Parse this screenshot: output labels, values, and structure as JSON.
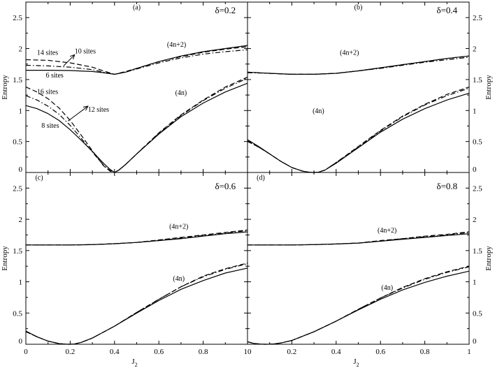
{
  "chart_data": [
    {
      "type": "line",
      "panel": "(a)",
      "annotation": "δ=0.2",
      "xlim": [
        0,
        1
      ],
      "ylim": [
        0,
        2.75
      ],
      "xticks": [
        "0",
        "0.2",
        "0.4",
        "0.6",
        "0.8",
        "1"
      ],
      "yticks": [
        "0",
        "0.5",
        "1",
        "1.5",
        "2",
        "2.5"
      ],
      "ylabel": "Entropy",
      "xlabel": "",
      "branch_labels": [
        "(4n+2)",
        "(4n)"
      ],
      "size_labels": [
        "14 sites",
        "10 sites",
        "6 sites",
        "16 sites",
        "12 sites",
        "8 sites"
      ],
      "series": [
        {
          "name": "6 sites",
          "dash": "solid",
          "x": [
            0,
            0.1,
            0.2,
            0.3,
            0.35,
            0.4,
            0.45,
            0.5,
            0.6,
            0.7,
            0.8,
            0.9,
            1.0
          ],
          "y": [
            1.65,
            1.65,
            1.645,
            1.63,
            1.61,
            1.585,
            1.62,
            1.68,
            1.79,
            1.88,
            1.95,
            2.0,
            2.05
          ]
        },
        {
          "name": "10 sites",
          "dash": "dashdot",
          "x": [
            0,
            0.1,
            0.2,
            0.3,
            0.35,
            0.4,
            0.45,
            0.5,
            0.6,
            0.7,
            0.8,
            0.9,
            1.0
          ],
          "y": [
            1.73,
            1.72,
            1.7,
            1.66,
            1.62,
            1.585,
            1.62,
            1.67,
            1.77,
            1.85,
            1.91,
            1.95,
            1.98
          ]
        },
        {
          "name": "14 sites",
          "dash": "dashed",
          "x": [
            0,
            0.1,
            0.2,
            0.3,
            0.35,
            0.4,
            0.45,
            0.5,
            0.6,
            0.7,
            0.8,
            0.9,
            1.0
          ],
          "y": [
            1.82,
            1.81,
            1.77,
            1.7,
            1.64,
            1.585,
            1.63,
            1.68,
            1.79,
            1.87,
            1.94,
            1.99,
            2.03
          ]
        },
        {
          "name": "8 sites",
          "dash": "solid",
          "x": [
            0,
            0.05,
            0.1,
            0.15,
            0.2,
            0.25,
            0.3,
            0.35,
            0.38,
            0.4,
            0.42,
            0.45,
            0.5,
            0.6,
            0.7,
            0.8,
            0.9,
            1.0
          ],
          "y": [
            1.08,
            1.03,
            0.95,
            0.84,
            0.69,
            0.52,
            0.34,
            0.15,
            0.05,
            0.0,
            0.04,
            0.13,
            0.3,
            0.62,
            0.9,
            1.12,
            1.3,
            1.44
          ]
        },
        {
          "name": "12 sites",
          "dash": "dashdot",
          "x": [
            0,
            0.05,
            0.1,
            0.15,
            0.2,
            0.25,
            0.3,
            0.35,
            0.38,
            0.4,
            0.42,
            0.45,
            0.5,
            0.6,
            0.7,
            0.8,
            0.9,
            1.0
          ],
          "y": [
            1.24,
            1.17,
            1.07,
            0.94,
            0.76,
            0.55,
            0.33,
            0.12,
            0.03,
            0.0,
            0.04,
            0.13,
            0.3,
            0.63,
            0.92,
            1.16,
            1.36,
            1.52
          ]
        },
        {
          "name": "16 sites",
          "dash": "dashed",
          "x": [
            0,
            0.05,
            0.1,
            0.15,
            0.2,
            0.25,
            0.3,
            0.35,
            0.38,
            0.4,
            0.42,
            0.45,
            0.5,
            0.6,
            0.7,
            0.8,
            0.9,
            1.0
          ],
          "y": [
            1.38,
            1.3,
            1.19,
            1.04,
            0.84,
            0.6,
            0.35,
            0.11,
            0.02,
            0.0,
            0.04,
            0.13,
            0.3,
            0.64,
            0.93,
            1.17,
            1.38,
            1.54
          ]
        }
      ]
    },
    {
      "type": "line",
      "panel": "(b)",
      "annotation": "δ=0.4",
      "xlim": [
        0,
        1
      ],
      "ylim": [
        0,
        2.75
      ],
      "xticks": [
        "0",
        "0.2",
        "0.4",
        "0.6",
        "0.8",
        "1"
      ],
      "yticks": [
        "0",
        "0.5",
        "1",
        "1.5",
        "2",
        "2.5"
      ],
      "ylabel": "",
      "xlabel": "",
      "branch_labels": [
        "(4n+2)",
        "(4n)"
      ],
      "series": [
        {
          "name": "",
          "dash": "solid",
          "x": [
            0,
            0.1,
            0.2,
            0.3,
            0.4,
            0.5,
            0.6,
            0.7,
            0.8,
            0.9,
            1.0
          ],
          "y": [
            1.62,
            1.6,
            1.585,
            1.585,
            1.6,
            1.64,
            1.69,
            1.74,
            1.79,
            1.84,
            1.88
          ]
        },
        {
          "name": "",
          "dash": "dashdot",
          "x": [
            0,
            0.1,
            0.2,
            0.3,
            0.4,
            0.5,
            0.6,
            0.7,
            0.8,
            0.9,
            1.0
          ],
          "y": [
            1.61,
            1.6,
            1.585,
            1.585,
            1.6,
            1.64,
            1.68,
            1.73,
            1.78,
            1.82,
            1.86
          ]
        },
        {
          "name": "",
          "dash": "dashed",
          "x": [
            0,
            0.1,
            0.2,
            0.3,
            0.4,
            0.5,
            0.6,
            0.7,
            0.8,
            0.9,
            1.0
          ],
          "y": [
            1.62,
            1.6,
            1.585,
            1.585,
            1.6,
            1.64,
            1.69,
            1.74,
            1.79,
            1.84,
            1.88
          ]
        },
        {
          "name": "",
          "dash": "solid",
          "x": [
            0,
            0.05,
            0.1,
            0.15,
            0.2,
            0.25,
            0.28,
            0.3,
            0.32,
            0.35,
            0.4,
            0.5,
            0.6,
            0.7,
            0.8,
            0.9,
            1.0
          ],
          "y": [
            0.53,
            0.42,
            0.3,
            0.18,
            0.08,
            0.02,
            0.003,
            0.0,
            0.005,
            0.04,
            0.15,
            0.4,
            0.65,
            0.86,
            1.03,
            1.17,
            1.28
          ]
        },
        {
          "name": "",
          "dash": "dashdot",
          "x": [
            0,
            0.05,
            0.1,
            0.15,
            0.2,
            0.25,
            0.28,
            0.3,
            0.32,
            0.35,
            0.4,
            0.5,
            0.6,
            0.7,
            0.8,
            0.9,
            1.0
          ],
          "y": [
            0.51,
            0.41,
            0.3,
            0.18,
            0.08,
            0.02,
            0.003,
            0.0,
            0.005,
            0.04,
            0.16,
            0.41,
            0.67,
            0.9,
            1.09,
            1.24,
            1.36
          ]
        },
        {
          "name": "",
          "dash": "dashed",
          "x": [
            0,
            0.05,
            0.1,
            0.15,
            0.2,
            0.25,
            0.28,
            0.3,
            0.32,
            0.35,
            0.4,
            0.5,
            0.6,
            0.7,
            0.8,
            0.9,
            1.0
          ],
          "y": [
            0.5,
            0.41,
            0.3,
            0.18,
            0.08,
            0.02,
            0.003,
            0.0,
            0.005,
            0.04,
            0.16,
            0.42,
            0.68,
            0.91,
            1.1,
            1.26,
            1.38
          ]
        }
      ]
    },
    {
      "type": "line",
      "panel": "(c)",
      "annotation": "δ=0.6",
      "xlim": [
        0,
        1
      ],
      "ylim": [
        0,
        2.75
      ],
      "xticks": [
        "0",
        "0.2",
        "0.4",
        "0.6",
        "0.8",
        "1"
      ],
      "yticks": [
        "0",
        "0.5",
        "1",
        "1.5",
        "2",
        "2.5"
      ],
      "ylabel": "Entropy",
      "xlabel": "J",
      "xlabel_sub": "2",
      "branch_labels": [
        "(4n+2)",
        "(4n)"
      ],
      "series": [
        {
          "name": "",
          "dash": "solid",
          "x": [
            0,
            0.1,
            0.2,
            0.3,
            0.4,
            0.5,
            0.6,
            0.7,
            0.8,
            0.9,
            1.0
          ],
          "y": [
            1.59,
            1.59,
            1.59,
            1.595,
            1.61,
            1.63,
            1.66,
            1.69,
            1.73,
            1.77,
            1.8
          ]
        },
        {
          "name": "",
          "dash": "dashdot",
          "x": [
            0,
            0.1,
            0.2,
            0.3,
            0.4,
            0.5,
            0.6,
            0.7,
            0.8,
            0.9,
            1.0
          ],
          "y": [
            1.59,
            1.59,
            1.59,
            1.595,
            1.61,
            1.63,
            1.66,
            1.7,
            1.74,
            1.78,
            1.82
          ]
        },
        {
          "name": "",
          "dash": "dashed",
          "x": [
            0,
            0.1,
            0.2,
            0.3,
            0.4,
            0.5,
            0.6,
            0.7,
            0.8,
            0.9,
            1.0
          ],
          "y": [
            1.59,
            1.59,
            1.59,
            1.595,
            1.61,
            1.63,
            1.67,
            1.71,
            1.75,
            1.79,
            1.83
          ]
        },
        {
          "name": "",
          "dash": "solid",
          "x": [
            0,
            0.05,
            0.1,
            0.15,
            0.18,
            0.2,
            0.22,
            0.25,
            0.3,
            0.4,
            0.5,
            0.6,
            0.7,
            0.8,
            0.9,
            1.0
          ],
          "y": [
            0.21,
            0.12,
            0.05,
            0.01,
            0.001,
            0.0,
            0.005,
            0.03,
            0.1,
            0.29,
            0.5,
            0.7,
            0.88,
            1.02,
            1.14,
            1.22
          ]
        },
        {
          "name": "",
          "dash": "dashdot",
          "x": [
            0,
            0.05,
            0.1,
            0.15,
            0.18,
            0.2,
            0.22,
            0.25,
            0.3,
            0.4,
            0.5,
            0.6,
            0.7,
            0.8,
            0.9,
            1.0
          ],
          "y": [
            0.21,
            0.12,
            0.05,
            0.01,
            0.001,
            0.0,
            0.005,
            0.03,
            0.1,
            0.29,
            0.51,
            0.72,
            0.92,
            1.08,
            1.2,
            1.29
          ]
        },
        {
          "name": "",
          "dash": "dashed",
          "x": [
            0,
            0.05,
            0.1,
            0.15,
            0.18,
            0.2,
            0.22,
            0.25,
            0.3,
            0.4,
            0.5,
            0.6,
            0.7,
            0.8,
            0.9,
            1.0
          ],
          "y": [
            0.2,
            0.12,
            0.05,
            0.01,
            0.001,
            0.0,
            0.005,
            0.03,
            0.1,
            0.29,
            0.51,
            0.72,
            0.92,
            1.09,
            1.21,
            1.3
          ]
        }
      ]
    },
    {
      "type": "line",
      "panel": "(d)",
      "annotation": "δ=0.8",
      "xlim": [
        0,
        1
      ],
      "ylim": [
        0,
        2.75
      ],
      "xticks": [
        "0",
        "0.2",
        "0.4",
        "0.6",
        "0.8",
        "1"
      ],
      "yticks": [
        "0",
        "0.5",
        "1",
        "1.5",
        "2",
        "2.5"
      ],
      "ylabel": "",
      "xlabel": "J",
      "xlabel_sub": "2",
      "branch_labels": [
        "(4n+2)",
        "(4n)"
      ],
      "series": [
        {
          "name": "",
          "dash": "solid",
          "x": [
            0,
            0.1,
            0.2,
            0.3,
            0.4,
            0.5,
            0.6,
            0.7,
            0.8,
            0.9,
            1.0
          ],
          "y": [
            1.59,
            1.59,
            1.59,
            1.595,
            1.605,
            1.62,
            1.65,
            1.68,
            1.71,
            1.74,
            1.77
          ]
        },
        {
          "name": "",
          "dash": "dashdot",
          "x": [
            0,
            0.1,
            0.2,
            0.3,
            0.4,
            0.5,
            0.6,
            0.7,
            0.8,
            0.9,
            1.0
          ],
          "y": [
            1.59,
            1.59,
            1.59,
            1.595,
            1.605,
            1.62,
            1.65,
            1.69,
            1.72,
            1.75,
            1.79
          ]
        },
        {
          "name": "",
          "dash": "dashed",
          "x": [
            0,
            0.1,
            0.2,
            0.3,
            0.4,
            0.5,
            0.6,
            0.7,
            0.8,
            0.9,
            1.0
          ],
          "y": [
            1.59,
            1.59,
            1.59,
            1.595,
            1.605,
            1.62,
            1.66,
            1.69,
            1.73,
            1.76,
            1.8
          ]
        },
        {
          "name": "",
          "dash": "solid",
          "x": [
            0,
            0.03,
            0.06,
            0.08,
            0.1,
            0.12,
            0.15,
            0.2,
            0.3,
            0.4,
            0.5,
            0.6,
            0.7,
            0.8,
            0.9,
            1.0
          ],
          "y": [
            0.04,
            0.012,
            0.002,
            0.0,
            0.001,
            0.006,
            0.02,
            0.06,
            0.2,
            0.37,
            0.55,
            0.72,
            0.87,
            0.99,
            1.09,
            1.17
          ]
        },
        {
          "name": "",
          "dash": "dashdot",
          "x": [
            0,
            0.03,
            0.06,
            0.08,
            0.1,
            0.12,
            0.15,
            0.2,
            0.3,
            0.4,
            0.5,
            0.6,
            0.7,
            0.8,
            0.9,
            1.0
          ],
          "y": [
            0.04,
            0.012,
            0.002,
            0.0,
            0.001,
            0.006,
            0.02,
            0.06,
            0.2,
            0.37,
            0.56,
            0.74,
            0.9,
            1.04,
            1.15,
            1.24
          ]
        },
        {
          "name": "",
          "dash": "dashed",
          "x": [
            0,
            0.03,
            0.06,
            0.08,
            0.1,
            0.12,
            0.15,
            0.2,
            0.3,
            0.4,
            0.5,
            0.6,
            0.7,
            0.8,
            0.9,
            1.0
          ],
          "y": [
            0.04,
            0.012,
            0.002,
            0.0,
            0.001,
            0.006,
            0.02,
            0.06,
            0.2,
            0.37,
            0.56,
            0.74,
            0.91,
            1.05,
            1.16,
            1.25
          ]
        }
      ]
    }
  ]
}
